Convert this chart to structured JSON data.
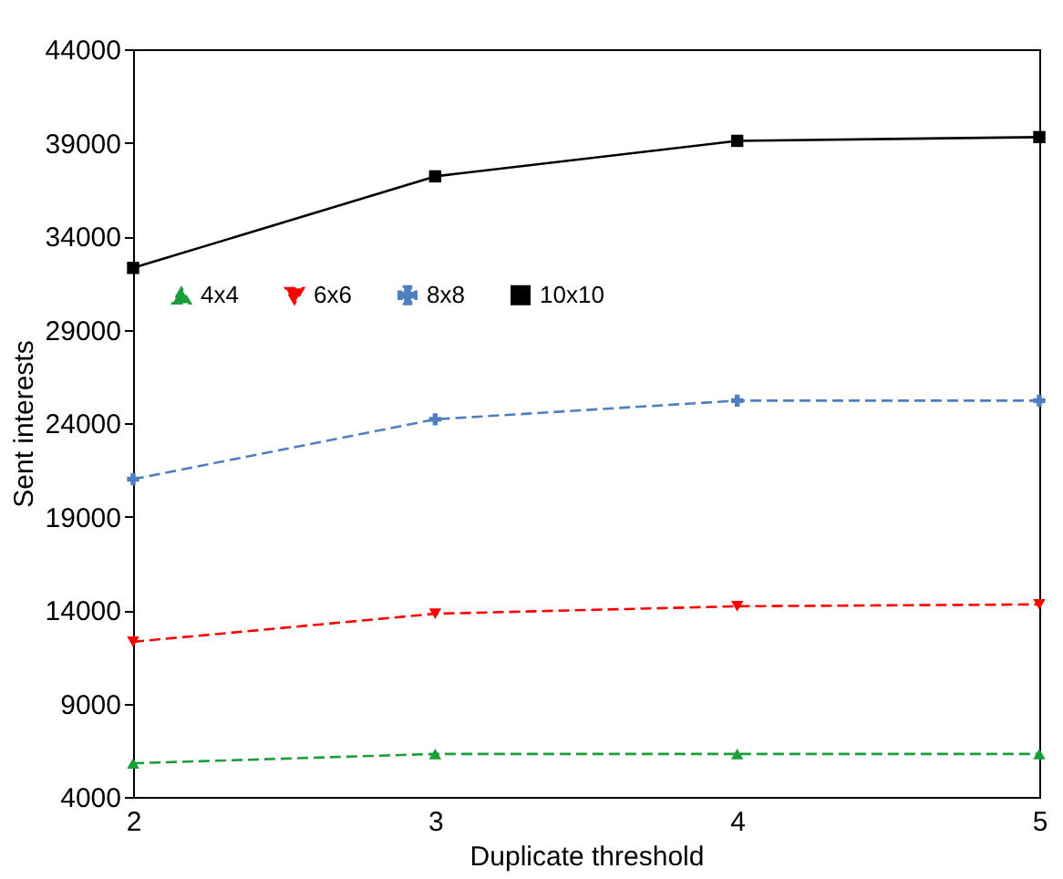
{
  "chart_data": {
    "type": "line",
    "xlabel": "Duplicate threshold",
    "ylabel": "Sent interests",
    "x": [
      2,
      3,
      4,
      5
    ],
    "xlim": [
      2,
      5
    ],
    "xticks": [
      2,
      3,
      4,
      5
    ],
    "ylim": [
      4000,
      44000
    ],
    "yticks": [
      4000,
      9000,
      14000,
      19000,
      24000,
      29000,
      34000,
      39000,
      44000
    ],
    "grid": false,
    "legend": "top",
    "series": [
      {
        "name": "4x4",
        "color": "#1a9e3a",
        "marker": "triangle",
        "line_style": "dashed",
        "values": [
          5800,
          6300,
          6300,
          6300
        ]
      },
      {
        "name": "6x6",
        "color": "#ff0000",
        "marker": "triangle-down",
        "line_style": "dashed",
        "values": [
          12300,
          13800,
          14200,
          14300
        ]
      },
      {
        "name": "8x8",
        "color": "#4f7fbf",
        "marker": "cross",
        "line_style": "dashed",
        "values": [
          21000,
          24200,
          25200,
          25200
        ]
      },
      {
        "name": "10x10",
        "color": "#000000",
        "marker": "square",
        "line_style": "solid",
        "values": [
          32300,
          37200,
          39100,
          39300
        ]
      }
    ]
  }
}
